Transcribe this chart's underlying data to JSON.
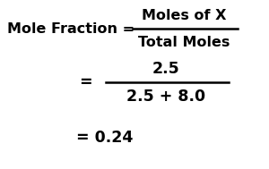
{
  "bg_color": "#ffffff",
  "text_color": "#000000",
  "line1_left": "Mole Fraction = ",
  "frac_numerator": "Moles of X",
  "frac_denominator": "Total Moles",
  "eq2": "=",
  "num2": "2.5",
  "den2": "2.5 + 8.0",
  "result": "= 0.24",
  "fontsize": 11.5
}
